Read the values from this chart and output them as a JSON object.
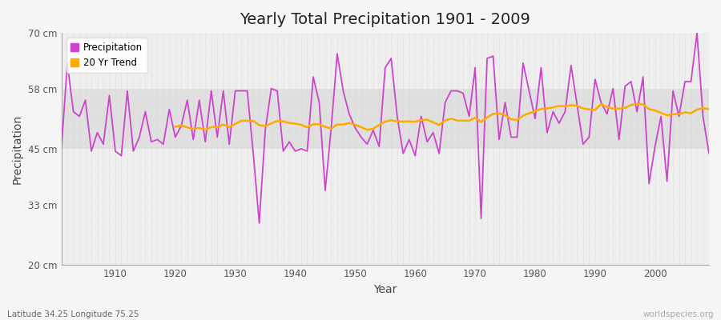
{
  "title": "Yearly Total Precipitation 1901 - 2009",
  "xlabel": "Year",
  "ylabel": "Precipitation",
  "subtitle": "Latitude 34.25 Longitude 75.25",
  "watermark": "worldspecies.org",
  "ylim": [
    20,
    70
  ],
  "xlim": [
    1901,
    2009
  ],
  "yticks": [
    20,
    33,
    45,
    58,
    70
  ],
  "ytick_labels": [
    "20 cm",
    "33 cm",
    "45 cm",
    "58 cm",
    "70 cm"
  ],
  "xticks": [
    1910,
    1920,
    1930,
    1940,
    1950,
    1960,
    1970,
    1980,
    1990,
    2000
  ],
  "fig_bg": "#f5f5f5",
  "axes_bg": "#eeeeee",
  "band_color": "#e0e0e0",
  "band_ymin": 45,
  "band_ymax": 58,
  "precip_color": "#cc44cc",
  "trend_color": "#ffaa00",
  "precip_linewidth": 1.3,
  "trend_linewidth": 1.8,
  "grid_color": "#cccccc",
  "years": [
    1901,
    1902,
    1903,
    1904,
    1905,
    1906,
    1907,
    1908,
    1909,
    1910,
    1911,
    1912,
    1913,
    1914,
    1915,
    1916,
    1917,
    1918,
    1919,
    1920,
    1921,
    1922,
    1923,
    1924,
    1925,
    1926,
    1927,
    1928,
    1929,
    1930,
    1931,
    1932,
    1933,
    1934,
    1935,
    1936,
    1937,
    1938,
    1939,
    1940,
    1941,
    1942,
    1943,
    1944,
    1945,
    1946,
    1947,
    1948,
    1949,
    1950,
    1951,
    1952,
    1953,
    1954,
    1955,
    1956,
    1957,
    1958,
    1959,
    1960,
    1961,
    1962,
    1963,
    1964,
    1965,
    1966,
    1967,
    1968,
    1969,
    1970,
    1971,
    1972,
    1973,
    1974,
    1975,
    1976,
    1977,
    1978,
    1979,
    1980,
    1981,
    1982,
    1983,
    1984,
    1985,
    1986,
    1987,
    1988,
    1989,
    1990,
    1991,
    1992,
    1993,
    1994,
    1995,
    1996,
    1997,
    1998,
    1999,
    2000,
    2001,
    2002,
    2003,
    2004,
    2005,
    2006,
    2007,
    2008,
    2009
  ],
  "precip": [
    45.0,
    63.5,
    53.0,
    52.0,
    55.5,
    44.5,
    48.5,
    46.0,
    56.5,
    44.5,
    43.5,
    57.5,
    44.5,
    47.5,
    53.0,
    46.5,
    47.0,
    46.0,
    53.5,
    47.5,
    50.0,
    55.5,
    47.0,
    55.5,
    46.5,
    57.5,
    47.5,
    57.5,
    46.0,
    57.5,
    57.5,
    57.5,
    44.0,
    29.0,
    49.0,
    58.0,
    57.5,
    44.5,
    46.5,
    44.5,
    45.0,
    44.5,
    60.5,
    55.0,
    36.0,
    49.5,
    65.5,
    57.5,
    52.5,
    49.5,
    47.5,
    46.0,
    49.0,
    45.5,
    62.5,
    64.5,
    52.0,
    44.0,
    47.0,
    43.5,
    52.0,
    46.5,
    48.5,
    44.0,
    55.0,
    57.5,
    57.5,
    57.0,
    52.0,
    62.5,
    30.0,
    64.5,
    65.0,
    47.0,
    55.0,
    47.5,
    47.5,
    63.5,
    57.5,
    51.5,
    62.5,
    48.5,
    53.0,
    50.5,
    53.0,
    63.0,
    54.5,
    46.0,
    47.5,
    60.0,
    55.0,
    52.5,
    58.0,
    47.0,
    58.5,
    59.5,
    53.0,
    60.5,
    37.5,
    45.5,
    52.0,
    38.0,
    57.5,
    52.0,
    59.5,
    59.5,
    70.0,
    52.0,
    44.0
  ]
}
